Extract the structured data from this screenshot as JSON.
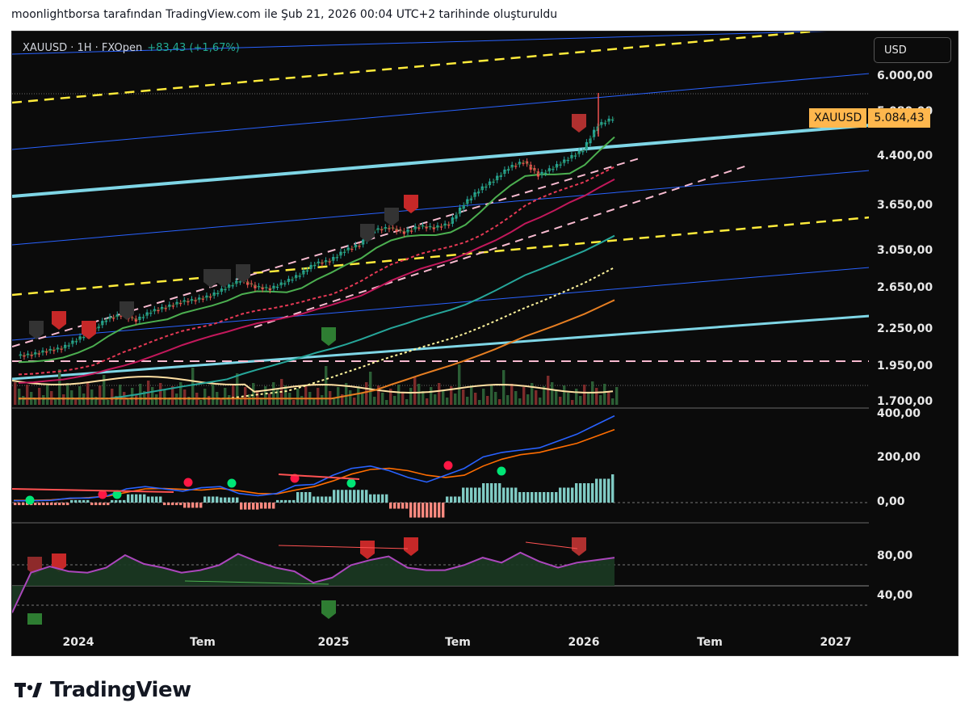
{
  "header": {
    "caption": "moonlightborsa tarafından TradingView.com ile Şub 21, 2026 00:04 UTC+2 tarihinde oluşturuldu"
  },
  "legend": {
    "symbol": "XAUUSD · 1H · FXOpen",
    "change": "+83,43 (+1,67%)"
  },
  "currency_button": "USD",
  "price_tag": {
    "symbol": "XAUUSD",
    "value": "5.084,43"
  },
  "brand": {
    "name": "TradingView"
  },
  "colors": {
    "background": "#0b0b0b",
    "up_candle": "#26a69a",
    "down_candle": "#ef5350",
    "channel_cyan": "#7fd6e6",
    "dashed_yellow": "#ffeb3b",
    "dashed_pink": "#f8bbd0",
    "blue_line": "#2962ff",
    "macd_fast": "#2962ff",
    "macd_slow": "#ff6d00",
    "rsi": "#ab47bc"
  },
  "chart_data": [
    {
      "type": "line",
      "panel": "price",
      "price_scale_labels": [
        "6.000,00",
        "5.080,00",
        "4.400,00",
        "3.650,00",
        "3.050,00",
        "2.650,00",
        "2.250,00",
        "1.950,00",
        "1.700,00"
      ],
      "x_tick_labels": [
        "2024",
        "Tem",
        "2025",
        "Tem",
        "2026",
        "Tem",
        "2027"
      ],
      "series": [
        {
          "values": [
            2030,
            2040,
            2070,
            2090,
            2160,
            2230,
            2340,
            2380,
            2330,
            2410,
            2450,
            2500,
            2520,
            2560,
            2640,
            2720,
            2650,
            2630,
            2700,
            2780,
            2900,
            2930,
            3050,
            3120,
            3300,
            3330,
            3270,
            3350,
            3330,
            3380,
            3650,
            3850,
            4000,
            4200,
            4300,
            4080,
            4200,
            4350,
            4500,
            4950,
            5084
          ]
        }
      ],
      "last_price": 5084.43
    },
    {
      "type": "line",
      "panel": "macd",
      "scale_labels": [
        "400,00",
        "200,00",
        "0,00"
      ],
      "series": [
        {
          "values": [
            8,
            8,
            10,
            20,
            20,
            30,
            60,
            70,
            60,
            50,
            65,
            70,
            40,
            30,
            40,
            75,
            80,
            120,
            150,
            160,
            140,
            110,
            90,
            120,
            150,
            200,
            220,
            230,
            240,
            270,
            300,
            340,
            380
          ]
        },
        {
          "values": [
            10,
            10,
            12,
            18,
            22,
            28,
            45,
            60,
            62,
            58,
            55,
            62,
            52,
            40,
            38,
            55,
            70,
            95,
            125,
            145,
            150,
            140,
            120,
            110,
            120,
            160,
            190,
            210,
            220,
            240,
            260,
            290,
            320
          ]
        }
      ]
    },
    {
      "type": "line",
      "panel": "rsi",
      "scale_labels": [
        "80,00",
        "40,00"
      ],
      "series": [
        {
          "values": [
            34,
            66,
            71,
            67,
            66,
            70,
            80,
            73,
            70,
            66,
            68,
            72,
            81,
            75,
            70,
            67,
            58,
            62,
            72,
            76,
            79,
            70,
            68,
            68,
            72,
            78,
            74,
            82,
            75,
            70,
            74,
            76,
            78
          ]
        }
      ]
    }
  ]
}
